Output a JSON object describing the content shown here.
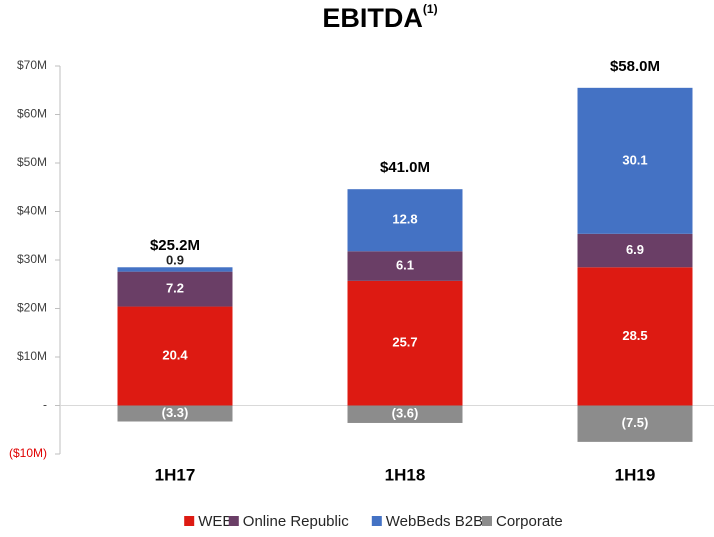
{
  "chart_data": {
    "type": "stacked_bar",
    "title": "EBITDA",
    "title_note": "(1)",
    "categories": [
      "1H17",
      "1H18",
      "1H19"
    ],
    "series": [
      {
        "name": "WEB",
        "color": "#dd1a12",
        "values": [
          20.4,
          25.7,
          28.5
        ]
      },
      {
        "name": "Online Republic",
        "color": "#6a3e66",
        "values": [
          7.2,
          6.1,
          6.9
        ]
      },
      {
        "name": "WebBeds B2B",
        "color": "#4472c4",
        "values": [
          0.9,
          12.8,
          30.1
        ]
      },
      {
        "name": "Corporate",
        "color": "#8c8c8c",
        "values": [
          -3.3,
          -3.6,
          -7.5
        ],
        "value_labels": [
          "(3.3)",
          "(3.6)",
          "(7.5)"
        ]
      }
    ],
    "totals": [
      {
        "value": 25.2,
        "label": "$25.2M"
      },
      {
        "value": 41.0,
        "label": "$41.0M"
      },
      {
        "value": 58.0,
        "label": "$58.0M"
      }
    ],
    "ylim": [
      -10,
      70
    ],
    "yticks": [
      {
        "value": -10,
        "label": "($10M)"
      },
      {
        "value": 0,
        "label": "-"
      },
      {
        "value": 10,
        "label": "$10M"
      },
      {
        "value": 20,
        "label": "$20M"
      },
      {
        "value": 30,
        "label": "$30M"
      },
      {
        "value": 40,
        "label": "$40M"
      },
      {
        "value": 50,
        "label": "$50M"
      },
      {
        "value": 60,
        "label": "$60M"
      },
      {
        "value": 70,
        "label": "$70M"
      }
    ],
    "negative_tick_color": "#e00000",
    "legend": "bottom"
  }
}
